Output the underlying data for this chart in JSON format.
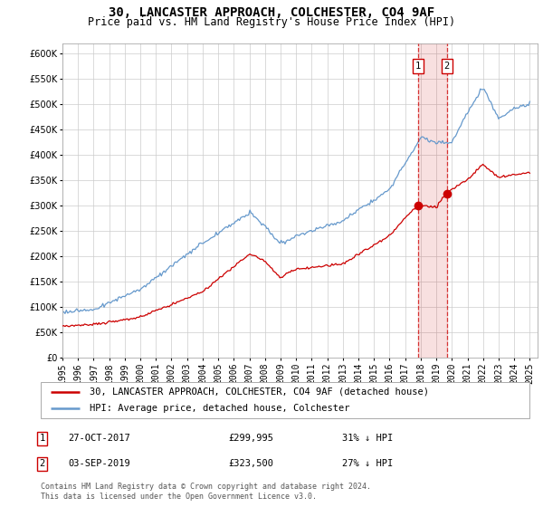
{
  "title": "30, LANCASTER APPROACH, COLCHESTER, CO4 9AF",
  "subtitle": "Price paid vs. HM Land Registry's House Price Index (HPI)",
  "legend_line1": "30, LANCASTER APPROACH, COLCHESTER, CO4 9AF (detached house)",
  "legend_line2": "HPI: Average price, detached house, Colchester",
  "footnote": "Contains HM Land Registry data © Crown copyright and database right 2024.\nThis data is licensed under the Open Government Licence v3.0.",
  "transaction1_date": "27-OCT-2017",
  "transaction1_price": "£299,995",
  "transaction1_hpi": "31% ↓ HPI",
  "transaction2_date": "03-SEP-2019",
  "transaction2_price": "£323,500",
  "transaction2_hpi": "27% ↓ HPI",
  "ylim": [
    0,
    620000
  ],
  "yticks": [
    0,
    50000,
    100000,
    150000,
    200000,
    250000,
    300000,
    350000,
    400000,
    450000,
    500000,
    550000,
    600000
  ],
  "hpi_color": "#6699cc",
  "price_color": "#cc0000",
  "marker_color": "#cc0000",
  "transaction1_x": 2017.83,
  "transaction2_x": 2019.67,
  "background_color": "#ffffff",
  "grid_color": "#cccccc",
  "xlim_start": 1995,
  "xlim_end": 2025.5,
  "hpi_key_t": [
    1995,
    1997,
    2000,
    2004,
    2007,
    2008,
    2009,
    2010,
    2013,
    2016,
    2017,
    2018,
    2019,
    2020,
    2021,
    2022,
    2023,
    2024,
    2025
  ],
  "hpi_key_v": [
    90000,
    95000,
    135000,
    225000,
    285000,
    258000,
    222000,
    238000,
    268000,
    330000,
    382000,
    432000,
    422000,
    422000,
    482000,
    530000,
    468000,
    488000,
    498000
  ],
  "price_key_t": [
    1995,
    1997,
    2000,
    2004,
    2007,
    2008,
    2009,
    2010,
    2013,
    2016,
    2017,
    2017.83,
    2018,
    2019,
    2019.67,
    2020,
    2021,
    2022,
    2023,
    2024,
    2025
  ],
  "price_key_v": [
    62000,
    65000,
    80000,
    130000,
    205000,
    190000,
    158000,
    175000,
    185000,
    240000,
    275000,
    299995,
    300000,
    295000,
    323500,
    330000,
    350000,
    380000,
    355000,
    360000,
    365000
  ],
  "title_fontsize": 10,
  "subtitle_fontsize": 8.5,
  "tick_fontsize": 7,
  "legend_fontsize": 7.5,
  "table_fontsize": 7.5,
  "footnote_fontsize": 6
}
